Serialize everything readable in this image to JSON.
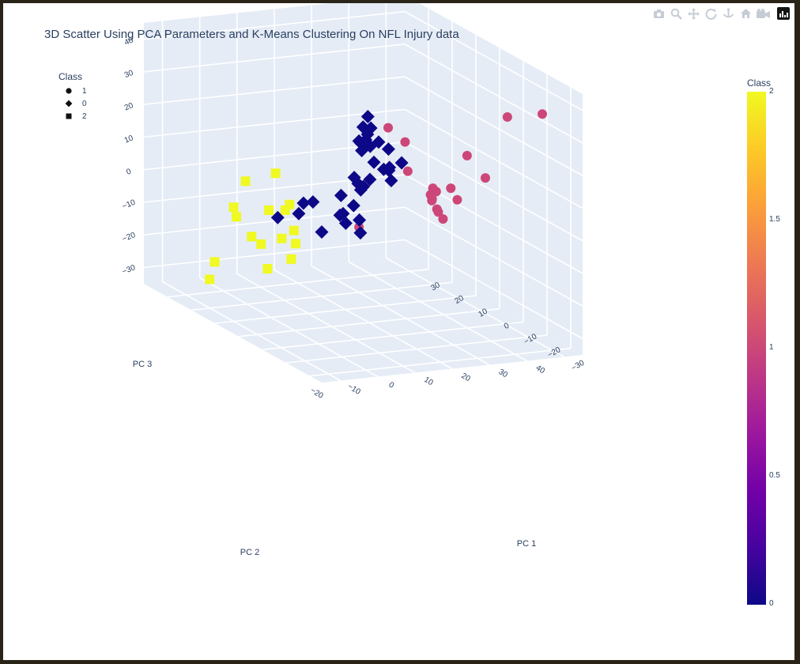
{
  "title": "3D Scatter Using PCA Parameters and K-Means Clustering On NFL Injury data",
  "modebar": {
    "icons": [
      "camera-icon",
      "zoom-icon",
      "pan-icon",
      "orbit-rotation-icon",
      "turntable-rotation-icon",
      "reset-camera-icon",
      "save-camera-icon",
      "plotly-logo-icon"
    ]
  },
  "legend": {
    "title": "Class",
    "items": [
      {
        "label": "1",
        "symbol": "circle"
      },
      {
        "label": "0",
        "symbol": "diamond"
      },
      {
        "label": "2",
        "symbol": "square"
      }
    ]
  },
  "colorbar": {
    "title": "Class",
    "ticks": [
      "2",
      "1.5",
      "1",
      "0.5",
      "0"
    ],
    "colorscale": [
      "#0d0887",
      "#46039f",
      "#7201a8",
      "#9c179e",
      "#bd3786",
      "#d8576b",
      "#ed7953",
      "#fb9f3a",
      "#fdca26",
      "#f0f921"
    ]
  },
  "chart_data": {
    "type": "scatter",
    "title": "3D Scatter Using PCA Parameters and K-Means Clustering On NFL Injury data",
    "axes": {
      "x": {
        "label": "PC 1",
        "ticks": [
          "−20",
          "−10",
          "0",
          "10",
          "20",
          "30",
          "40"
        ]
      },
      "y": {
        "label": "PC 2",
        "ticks": [
          "−30",
          "−20",
          "−10",
          "0",
          "10",
          "20",
          "30"
        ]
      },
      "z": {
        "label": "PC 3",
        "ticks": [
          "−30",
          "−20",
          "−10",
          "0",
          "10",
          "20",
          "30",
          "40"
        ]
      }
    },
    "class_colors": {
      "0": "#0d0887",
      "1": "#cc4778",
      "2": "#f0f921"
    },
    "series": [
      {
        "name": "1",
        "symbol": "circle",
        "class": 1,
        "points": [
          [
            28,
            -30,
            38
          ],
          [
            45,
            -18,
            32
          ],
          [
            10,
            -8,
            28
          ],
          [
            12,
            -12,
            25
          ],
          [
            14,
            -10,
            15
          ],
          [
            22,
            -8,
            8
          ],
          [
            35,
            -2,
            14
          ],
          [
            38,
            -5,
            8
          ],
          [
            30,
            -3,
            5
          ],
          [
            28,
            0,
            3
          ],
          [
            30,
            5,
            -2
          ],
          [
            32,
            8,
            -3
          ],
          [
            33,
            5,
            -8
          ],
          [
            36,
            15,
            -5
          ],
          [
            40,
            18,
            -12
          ],
          [
            20,
            20,
            -15
          ],
          [
            40,
            10,
            -5
          ],
          [
            25,
            -5,
            0
          ]
        ]
      },
      {
        "name": "0",
        "symbol": "diamond",
        "class": 0,
        "points": [
          [
            2,
            -12,
            34
          ],
          [
            0,
            -15,
            30
          ],
          [
            -5,
            -20,
            30
          ],
          [
            2,
            -10,
            30
          ],
          [
            6,
            -7,
            28
          ],
          [
            4,
            -8,
            25
          ],
          [
            6,
            -2,
            22
          ],
          [
            10,
            -4,
            22
          ],
          [
            9,
            -2,
            20
          ],
          [
            12,
            -5,
            20
          ],
          [
            8,
            0,
            18
          ],
          [
            10,
            -2,
            15
          ],
          [
            12,
            -3,
            13
          ],
          [
            14,
            -2,
            12
          ],
          [
            6,
            0,
            10
          ],
          [
            7,
            0,
            8
          ],
          [
            9,
            2,
            5
          ],
          [
            11,
            4,
            5
          ],
          [
            14,
            6,
            6
          ],
          [
            18,
            4,
            10
          ],
          [
            20,
            2,
            12
          ],
          [
            21,
            8,
            4
          ],
          [
            5,
            4,
            3
          ],
          [
            9,
            5,
            -1
          ],
          [
            0,
            8,
            0
          ],
          [
            0,
            12,
            -2
          ],
          [
            0,
            14,
            -6
          ],
          [
            -5,
            15,
            -7
          ],
          [
            10,
            11,
            -6
          ],
          [
            12,
            13,
            -10
          ],
          [
            15,
            12,
            -9
          ],
          [
            14,
            10,
            -12
          ],
          [
            6,
            6,
            -4
          ],
          [
            3,
            9,
            -10
          ]
        ]
      },
      {
        "name": "2",
        "symbol": "square",
        "class": 2,
        "points": [
          [
            -20,
            5,
            10
          ],
          [
            -10,
            8,
            10
          ],
          [
            -20,
            10,
            0
          ],
          [
            -18,
            12,
            -4
          ],
          [
            -5,
            10,
            -1
          ],
          [
            -8,
            14,
            -4
          ],
          [
            -3,
            15,
            -5
          ],
          [
            -12,
            15,
            -12
          ],
          [
            0,
            16,
            -12
          ],
          [
            -2,
            18,
            -15
          ],
          [
            3,
            20,
            -18
          ],
          [
            -5,
            22,
            -18
          ],
          [
            -20,
            18,
            -20
          ],
          [
            5,
            25,
            -25
          ],
          [
            -15,
            28,
            -30
          ],
          [
            5,
            35,
            -32
          ]
        ]
      }
    ]
  }
}
